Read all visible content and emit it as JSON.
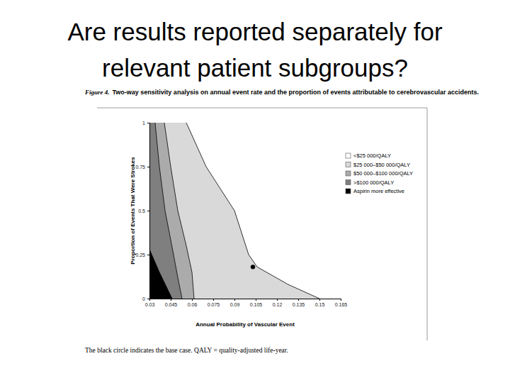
{
  "slide_title": [
    "Are results reported separately for",
    "relevant patient subgroups?"
  ],
  "chart_data": {
    "type": "area",
    "figure_label": "Figure 4.",
    "title": "Two-way sensitivity analysis on annual event rate and the proportion of events attributable to cerebrovascular accidents.",
    "footnote": "The black circle indicates the base case. QALY = quality-adjusted life-year.",
    "x_label": "Annual Probability of Vascular Event",
    "y_label": "Proportion of Events That Were Strokes",
    "xlim": [
      0.03,
      0.165
    ],
    "ylim": [
      0,
      1
    ],
    "xticks": [
      0.03,
      0.045,
      0.06,
      0.075,
      0.09,
      0.105,
      0.12,
      0.135,
      0.15,
      0.165
    ],
    "yticks": [
      0,
      0.25,
      0.5,
      0.75,
      1
    ],
    "legend": "right",
    "series": [
      {
        "name": "<$25 000/QALY",
        "color": "#ffffff"
      },
      {
        "name": "$25 000–$50 000/QALY",
        "color": "#d9d9d9",
        "x": [
          0.056,
          0.07,
          0.09,
          0.1,
          0.106,
          0.128,
          0.15
        ],
        "values": [
          1,
          0.75,
          0.5,
          0.25,
          0.18,
          0.08,
          0
        ]
      },
      {
        "name": "$50 000–$100 000/QALY",
        "color": "#ababab",
        "x": [
          0.0405,
          0.045,
          0.05,
          0.056,
          0.06,
          0.0615
        ],
        "values": [
          1,
          0.75,
          0.5,
          0.3,
          0.15,
          0
        ]
      },
      {
        "name": ">$100 000/QALY",
        "color": "#7f7f7f",
        "x": [
          0.034,
          0.037,
          0.041,
          0.047,
          0.05,
          0.053
        ],
        "values": [
          1,
          0.75,
          0.5,
          0.25,
          0.12,
          0
        ]
      },
      {
        "name": "Aspirin more effective",
        "color": "#000000",
        "x": [
          0.03,
          0.037,
          0.046
        ],
        "values": [
          0.28,
          0.15,
          0
        ]
      }
    ],
    "base_case": {
      "x": 0.103,
      "y": 0.18
    }
  }
}
